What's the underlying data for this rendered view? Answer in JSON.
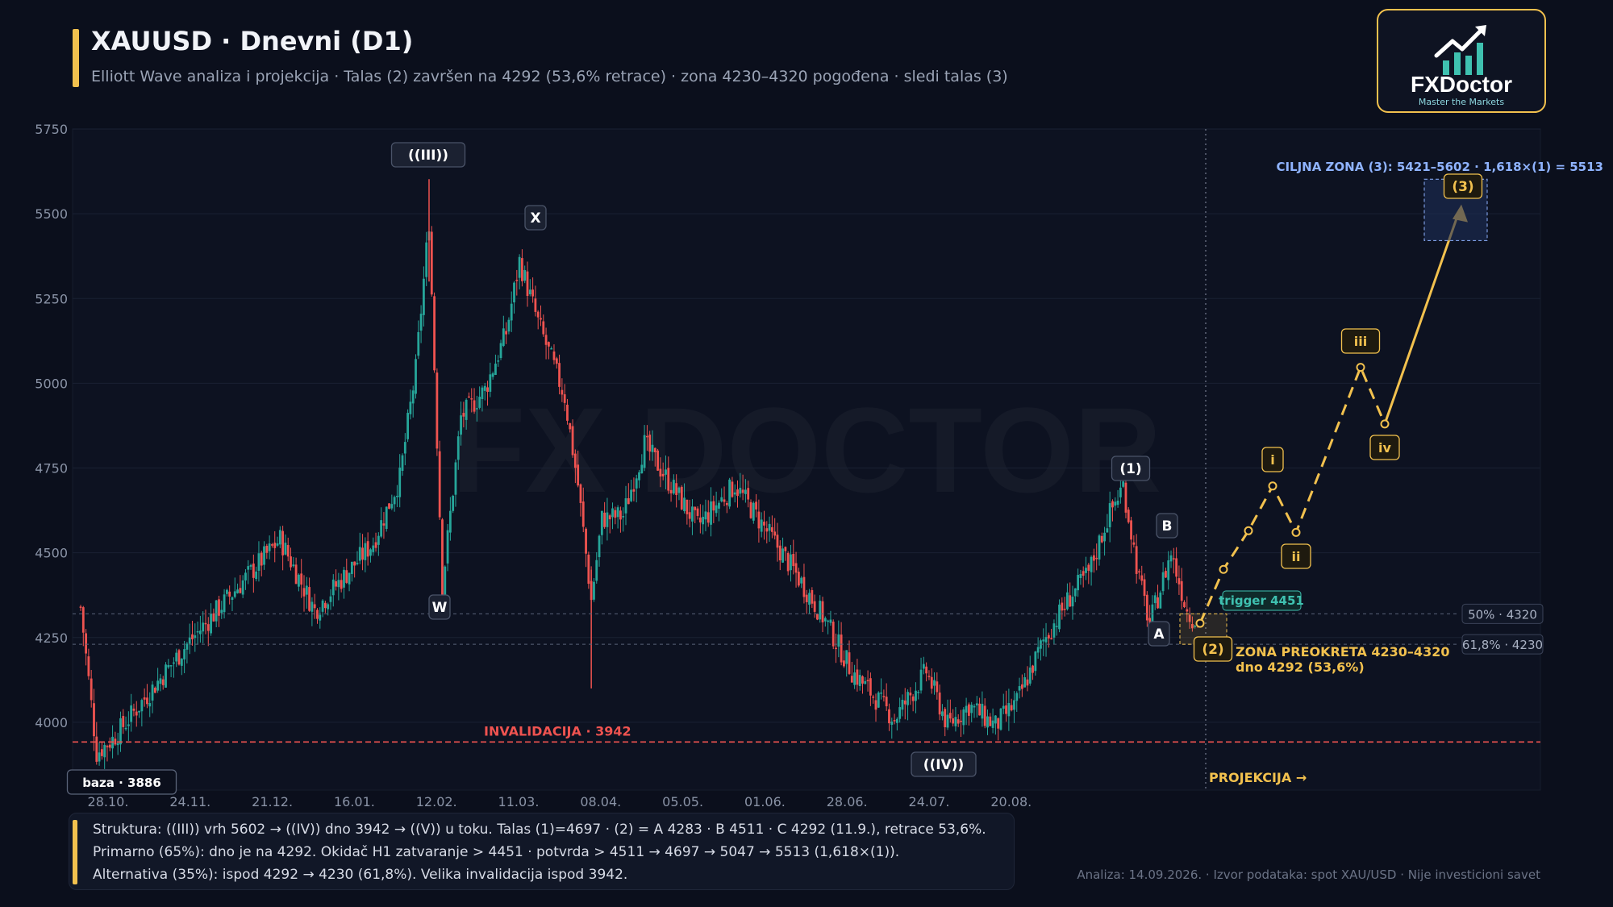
{
  "header": {
    "title": "XAUUSD · Dnevni (D1)",
    "subtitle": "Elliott Wave analiza i projekcija · Talas (2) završen na 4292 (53,6% retrace) · zona 4230–4320 pogođena · sledi talas (3)"
  },
  "logo": {
    "name": "FXDoctor",
    "tagline": "Master the Markets"
  },
  "watermark": "FX DOCTOR",
  "colors": {
    "background": "#0b0f1c",
    "bull": "#26a69a",
    "bear": "#ef5350",
    "accent": "#f2c14e",
    "invalidation": "#ef5350",
    "target": "#8fb3ff",
    "trigger": "#3fc1b0"
  },
  "chart_data": {
    "type": "candlestick",
    "ylim": [
      3800,
      5750
    ],
    "y_ticks": [
      4000,
      4250,
      4500,
      4750,
      5000,
      5250,
      5500,
      5750
    ],
    "x_tick_labels": [
      "28.10.",
      "24.11.",
      "21.12.",
      "16.01.",
      "12.02.",
      "11.03.",
      "08.04.",
      "05.05.",
      "01.06.",
      "28.06.",
      "24.07.",
      "20.08."
    ],
    "ohlc_anchor_closes": [
      {
        "label": "baza · 3886",
        "value": 3886
      },
      {
        "label": "((III))",
        "value": 5602
      },
      {
        "label": "W",
        "value": 4400
      },
      {
        "label": "X",
        "value": 5430
      },
      {
        "label": "((IV))",
        "value": 3942
      },
      {
        "label": "(1)",
        "value": 4697
      },
      {
        "label": "A",
        "value": 4283
      },
      {
        "label": "B",
        "value": 4511
      },
      {
        "label": "(2)",
        "value": 4292
      }
    ],
    "wave_labels": {
      "w3": "((III))",
      "w": "W",
      "x": "X",
      "w4": "((IV))",
      "w1": "(1)",
      "a": "A",
      "b": "B",
      "w2": "(2)",
      "base": "baza · 3886"
    },
    "levels": [
      {
        "label": "50% · 4320",
        "value": 4320
      },
      {
        "label": "61,8% · 4230",
        "value": 4230
      },
      {
        "label": "INVALIDACIJA · 3942",
        "value": 3942
      }
    ],
    "projection": {
      "label": "PROJEKCIJA →",
      "trigger_label": "trigger 4451",
      "path_values": [
        4292,
        4451,
        4565,
        4697,
        4560,
        5047,
        4880,
        5513
      ],
      "wave_labels": [
        "i",
        "ii",
        "iii",
        "iv",
        "(3)"
      ],
      "target_zone": [
        5421,
        5602
      ],
      "target_label": "CILJNA ZONA (3): 5421–5602 · 1,618×(1) = 5513",
      "reversal_zone_label_1": "ZONA PREOKRETA 4230–4320",
      "reversal_zone_label_2": "dno 4292 (53,6%)"
    }
  },
  "notes": {
    "line1": "Struktura: ((III)) vrh 5602 → ((IV)) dno 3942 → ((V)) u toku. Talas (1)=4697 · (2) = A 4283 · B 4511 · C 4292 (11.9.), retrace 53,6%.",
    "line2": "Primarno (65%): dno je na 4292. Okidač H1 zatvaranje > 4451 · potvrda > 4511 → 4697 → 5047 → 5513 (1,618×(1)).",
    "line3": "Alternativa (35%): ispod 4292 → 4230 (61,8%). Velika invalidacija ispod 3942."
  },
  "footer": "Analiza: 14.09.2026. · Izvor podataka: spot XAU/USD · Nije investicioni savet"
}
